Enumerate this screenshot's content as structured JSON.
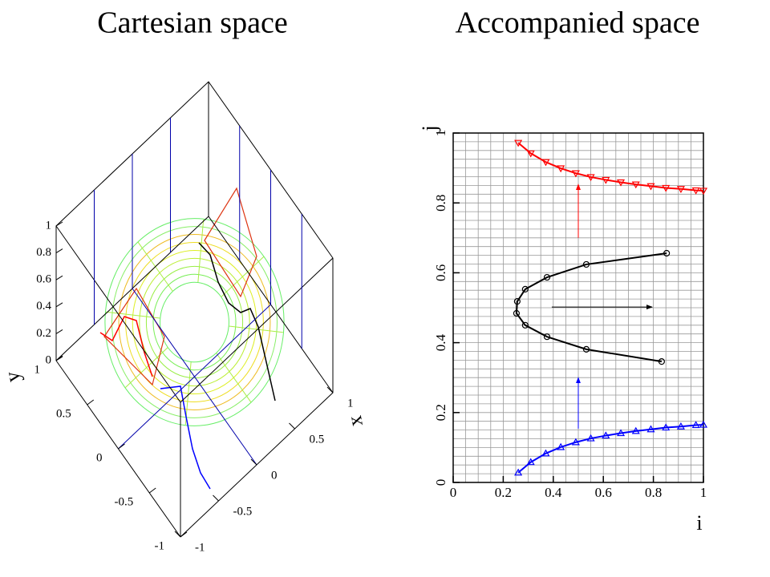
{
  "chart_data": [
    {
      "type": "surface3d",
      "title": "Cartesian space",
      "x_label": "x",
      "y_label": "y",
      "xlim": [
        -1,
        1
      ],
      "xticks": [
        -1,
        -0.5,
        0,
        0.5,
        1
      ],
      "ylim": [
        -1,
        1
      ],
      "yticks": [
        -1,
        -0.5,
        0,
        0.5,
        1
      ],
      "zlim": [
        0,
        1
      ],
      "zticks": [
        0,
        0.2,
        0.4,
        0.6,
        0.8,
        1
      ]
    },
    {
      "type": "line",
      "title": "Accompanied space",
      "x_label": "i",
      "y_label": "j",
      "xlim": [
        0,
        1
      ],
      "xticks": [
        0,
        0.2,
        0.4,
        0.6,
        0.8,
        1
      ],
      "ylim": [
        0,
        1
      ],
      "yticks": [
        0,
        0.2,
        0.4,
        0.6,
        0.8,
        1
      ],
      "grid": true,
      "grid_step": [
        0.05,
        0.025
      ],
      "series": [
        {
          "color": "#ff0000",
          "marker": "triangle-down",
          "x": [
            0.26,
            0.31,
            0.37,
            0.43,
            0.49,
            0.55,
            0.61,
            0.67,
            0.73,
            0.79,
            0.85,
            0.91,
            0.97,
            1.0
          ],
          "values": [
            0.972,
            0.942,
            0.917,
            0.899,
            0.885,
            0.874,
            0.866,
            0.859,
            0.853,
            0.848,
            0.843,
            0.84,
            0.836,
            0.835
          ]
        },
        {
          "color": "#000000",
          "marker": "circle",
          "x": [
            0.853,
            0.532,
            0.375,
            0.288,
            0.256,
            0.253,
            0.288,
            0.375,
            0.532,
            0.833
          ],
          "values": [
            0.656,
            0.624,
            0.587,
            0.553,
            0.518,
            0.484,
            0.45,
            0.417,
            0.381,
            0.346
          ]
        },
        {
          "color": "#0000ff",
          "marker": "triangle-up",
          "x": [
            0.26,
            0.31,
            0.37,
            0.43,
            0.49,
            0.55,
            0.61,
            0.67,
            0.73,
            0.79,
            0.85,
            0.91,
            0.97,
            1.0
          ],
          "values": [
            0.028,
            0.058,
            0.083,
            0.101,
            0.115,
            0.126,
            0.134,
            0.141,
            0.147,
            0.152,
            0.157,
            0.16,
            0.164,
            0.165
          ]
        }
      ],
      "arrows": [
        {
          "color": "#ff0000",
          "x": [
            0.5,
            0.5
          ],
          "y": [
            0.7,
            0.853
          ]
        },
        {
          "color": "#000000",
          "x": [
            0.394,
            0.795
          ],
          "y": [
            0.502,
            0.502
          ]
        },
        {
          "color": "#0000ff",
          "x": [
            0.5,
            0.5
          ],
          "y": [
            0.154,
            0.3
          ]
        }
      ]
    }
  ]
}
